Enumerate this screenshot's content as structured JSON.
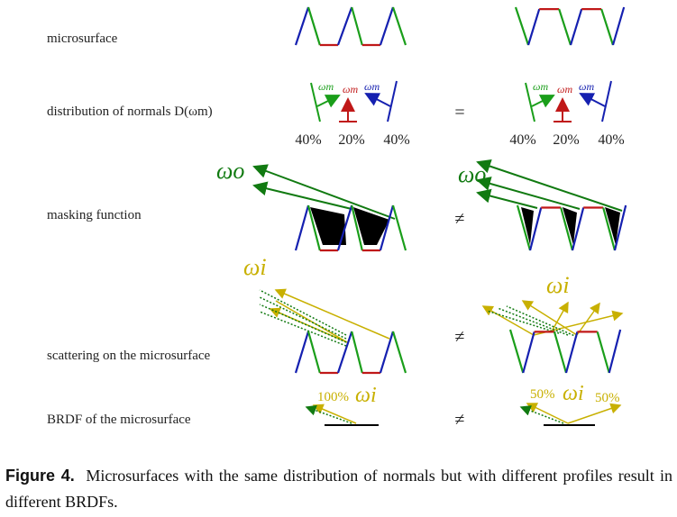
{
  "labels": [
    "microsurface",
    "distribution of normals D(ωm)",
    "masking function",
    "scattering on the microsurface",
    "BRDF of the microsurface"
  ],
  "relations": [
    "=",
    "≠",
    "≠",
    "≠"
  ],
  "distribution": {
    "left": {
      "symbols": [
        "ωm",
        "ωm",
        "ωm"
      ],
      "percentages": [
        "40%",
        "20%",
        "40%"
      ]
    },
    "right": {
      "symbols": [
        "ωm",
        "ωm",
        "ωm"
      ],
      "percentages": [
        "40%",
        "20%",
        "40%"
      ]
    }
  },
  "masking": {
    "left": {
      "symbol": "ωo"
    },
    "right": {
      "symbol": "ωo"
    }
  },
  "scattering": {
    "left": {
      "symbol": "ωi"
    },
    "right": {
      "symbol": "ωi"
    }
  },
  "brdf": {
    "left": {
      "percentage": "100%",
      "symbol": "ωi"
    },
    "right": {
      "percentages": [
        "50%",
        "50%"
      ],
      "symbol": "ωi"
    }
  },
  "caption": {
    "label": "Figure 4.",
    "text": "Microsurfaces with the same distribution of normals but with different profiles result in different BRDFs."
  }
}
